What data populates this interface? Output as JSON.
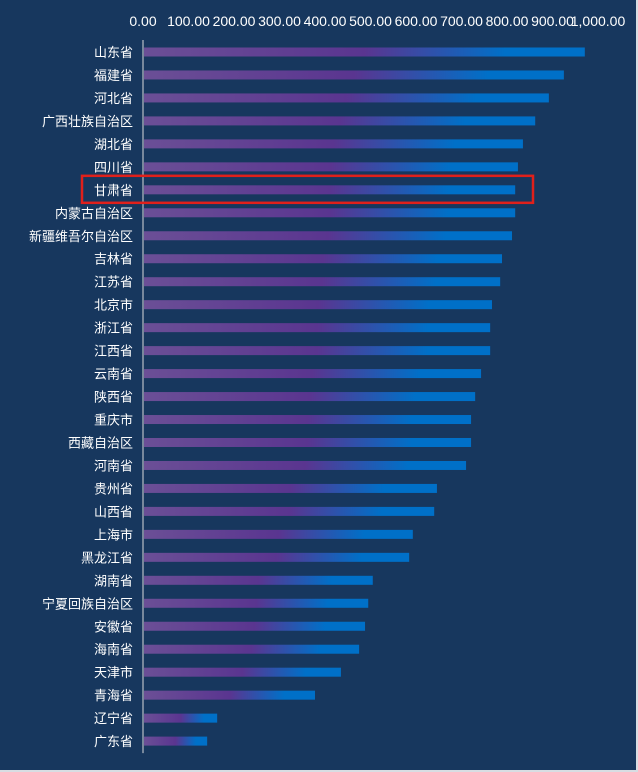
{
  "chart_data": {
    "type": "bar",
    "orientation": "horizontal",
    "title": "",
    "xlabel": "",
    "ylabel": "",
    "xlim": [
      0,
      1000
    ],
    "x_ticks": [
      "0.00",
      "100.00",
      "200.00",
      "300.00",
      "400.00",
      "500.00",
      "600.00",
      "700.00",
      "800.00",
      "900.00",
      "1,000.00"
    ],
    "x_axis_position": "top",
    "grid": false,
    "categories": [
      "山东省",
      "福建省",
      "河北省",
      "广西壮族自治区",
      "湖北省",
      "四川省",
      "甘肃省",
      "内蒙古自治区",
      "新疆维吾尔自治区",
      "吉林省",
      "江苏省",
      "北京市",
      "浙江省",
      "江西省",
      "云南省",
      "陕西省",
      "重庆市",
      "西藏自治区",
      "河南省",
      "贵州省",
      "山西省",
      "上海市",
      "黑龙江省",
      "湖南省",
      "宁夏回族自治区",
      "安徽省",
      "海南省",
      "天津市",
      "青海省",
      "辽宁省",
      "广东省"
    ],
    "values": [
      971,
      925,
      892,
      862,
      835,
      824,
      818,
      818,
      811,
      789,
      785,
      767,
      763,
      763,
      743,
      730,
      721,
      721,
      710,
      646,
      640,
      593,
      585,
      505,
      495,
      488,
      475,
      435,
      378,
      163,
      141
    ],
    "highlight": "甘肃省",
    "colors": {
      "background": "#17375e",
      "bar_start": "#6b4f96",
      "bar_mid": "#5a3590",
      "bar_end": "#0070c8",
      "highlight_box": "#e0201b",
      "axis": "#d9d9d9"
    }
  }
}
